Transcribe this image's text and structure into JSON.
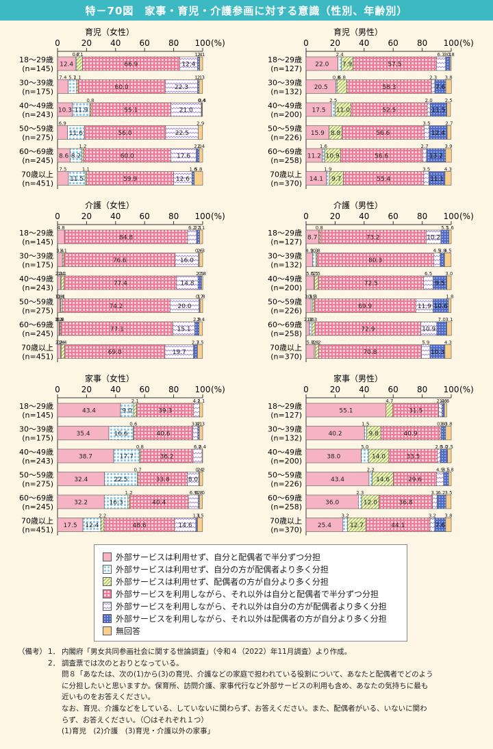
{
  "title": "特－70図　家事・育児・介護参画に対する意識（性別、年齢別）",
  "axis": {
    "ticks": [
      "0",
      "20",
      "40",
      "60",
      "80",
      "100"
    ],
    "unit": "(%)"
  },
  "categories": [
    [
      "18～29歳",
      "(n=145)"
    ],
    [
      "30～39歳",
      "(n=175)"
    ],
    [
      "40～49歳",
      "(n=243)"
    ],
    [
      "50～59歳",
      "(n=275)"
    ],
    [
      "60～69歳",
      "(n=245)"
    ],
    [
      "70歳以上",
      "(n=451)"
    ]
  ],
  "categories_male": [
    [
      "18～29歳",
      "(n=127)"
    ],
    [
      "30～39歳",
      "(n=132)"
    ],
    [
      "40～49歳",
      "(n=200)"
    ],
    [
      "50～59歳",
      "(n=226)"
    ],
    [
      "60～69歳",
      "(n=258)"
    ],
    [
      "70歳以上",
      "(n=370)"
    ]
  ],
  "colors": [
    "#f5b3c4",
    "#9ed4ef",
    "#d4e48a",
    "#f28aa2",
    "#d2c3ef",
    "#4f6bc4",
    "#f9cf8d"
  ],
  "patterns": [
    "solid",
    "dots",
    "diag",
    "grid",
    "wave",
    "dotsdark",
    "solid"
  ],
  "legend": [
    "外部サービスは利用せず、自分と配偶者で半分ずつ分担",
    "外部サービスは利用せず、自分の方が配偶者より多く分担",
    "外部サービスは利用せず、配偶者の方が自分より多く分担",
    "外部サービスを利用しながら、それ以外は自分と配偶者で半分ずつ分担",
    "外部サービスを利用しながら、それ以外は自分の方が配偶者より多く分担",
    "外部サービスを利用しながら、それ以外は配偶者の方が自分より多く分担",
    "無回答"
  ],
  "chart_data": [
    {
      "type": "bar",
      "stacked": true,
      "orientation": "horizontal",
      "title": "育児（女性）",
      "xlim": [
        0,
        100
      ],
      "group": "female",
      "values": [
        [
          12.4,
          0.7,
          4.1,
          66.9,
          12.4,
          1.4,
          2.1
        ],
        [
          7.4,
          5.7,
          1.1,
          60.0,
          22.3,
          1.1,
          2.3
        ],
        [
          10.3,
          11.9,
          0.8,
          55.1,
          21.0,
          0.4,
          0.4
        ],
        [
          6.9,
          11.6,
          0,
          56.0,
          22.5,
          0,
          2.9
        ],
        [
          8.6,
          8.2,
          1.2,
          60.0,
          17.6,
          2.0,
          2.4
        ],
        [
          7.5,
          11.5,
          1.1,
          59.9,
          12.6,
          1.6,
          5.8
        ]
      ]
    },
    {
      "type": "bar",
      "stacked": true,
      "orientation": "horizontal",
      "title": "育児（男性）",
      "xlim": [
        0,
        100
      ],
      "group": "male",
      "values": [
        [
          22.0,
          2.4,
          7.9,
          57.5,
          6.3,
          3.1,
          0.8
        ],
        [
          20.5,
          0.8,
          6.8,
          58.3,
          2.3,
          7.6,
          3.8
        ],
        [
          17.5,
          2.5,
          11.0,
          52.5,
          2.0,
          11.5,
          2.5
        ],
        [
          15.9,
          0,
          8.8,
          56.6,
          3.5,
          12.4,
          2.7
        ],
        [
          11.2,
          1.6,
          10.9,
          56.6,
          2.7,
          13.2,
          3.9
        ],
        [
          14.1,
          1.9,
          9.7,
          55.4,
          3.5,
          11.1,
          4.3
        ]
      ]
    },
    {
      "type": "bar",
      "stacked": true,
      "orientation": "horizontal",
      "title": "介護（女性）",
      "xlim": [
        0,
        100
      ],
      "group": "female",
      "values": [
        [
          4.8,
          0,
          0,
          84.8,
          6.2,
          2.1,
          2.1
        ],
        [
          3.4,
          0,
          1.1,
          76.6,
          16.0,
          0.6,
          2.3
        ],
        [
          2.1,
          0.4,
          2.1,
          77.4,
          14.8,
          2.5,
          0.8
        ],
        [
          1.8,
          0.4,
          1.1,
          74.2,
          20.0,
          0.7,
          1.8
        ],
        [
          1.2,
          0.4,
          0.8,
          77.1,
          15.1,
          2.9,
          2.4
        ],
        [
          2.2,
          0.4,
          2.4,
          69.0,
          19.7,
          2.7,
          3.5
        ]
      ]
    },
    {
      "type": "bar",
      "stacked": true,
      "orientation": "horizontal",
      "title": "介護（男性）",
      "xlim": [
        0,
        100
      ],
      "group": "male",
      "values": [
        [
          8.7,
          0,
          0.8,
          73.2,
          10.2,
          5.5,
          1.6
        ],
        [
          4.5,
          2.3,
          0.8,
          80.3,
          4.5,
          3.0,
          4.5
        ],
        [
          5.5,
          0.5,
          2.5,
          72.5,
          6.5,
          9.5,
          3.0
        ],
        [
          3.5,
          0.9,
          1.3,
          69.9,
          11.9,
          10.6,
          1.8
        ],
        [
          2.3,
          1.6,
          2.3,
          72.9,
          10.9,
          7.0,
          3.1
        ],
        [
          5.7,
          0.8,
          2.2,
          70.8,
          5.9,
          10.3,
          4.3
        ]
      ]
    },
    {
      "type": "bar",
      "stacked": true,
      "orientation": "horizontal",
      "title": "家事（女性）",
      "xlim": [
        0,
        100
      ],
      "group": "female",
      "values": [
        [
          43.4,
          9.0,
          2.1,
          39.3,
          4.1,
          0,
          2.1
        ],
        [
          35.4,
          16.6,
          0.6,
          40.6,
          3.4,
          1.1,
          2.3
        ],
        [
          38.7,
          17.7,
          0.8,
          36.2,
          6.2,
          0,
          0.4
        ],
        [
          32.4,
          22.5,
          0.7,
          33.8,
          8.0,
          0.4,
          2.2
        ],
        [
          32.2,
          16.3,
          1.2,
          40.4,
          6.9,
          0.8,
          2.0
        ],
        [
          17.5,
          12.4,
          2.2,
          48.6,
          14.6,
          1.1,
          3.5
        ]
      ]
    },
    {
      "type": "bar",
      "stacked": true,
      "orientation": "horizontal",
      "title": "家事（男性）",
      "xlim": [
        0,
        100
      ],
      "group": "male",
      "values": [
        [
          55.1,
          0,
          4.7,
          31.5,
          2.4,
          1.6,
          1.6
        ],
        [
          40.2,
          1.5,
          9.8,
          40.9,
          0.8,
          3.0,
          3.8
        ],
        [
          38.0,
          5.0,
          14.0,
          33.5,
          2.0,
          5.0,
          2.5
        ],
        [
          43.4,
          2.2,
          14.6,
          29.6,
          4.9,
          3.5,
          1.8
        ],
        [
          36.0,
          2.3,
          12.0,
          36.8,
          3.1,
          6.2,
          3.5
        ],
        [
          25.4,
          3.2,
          12.7,
          44.1,
          3.2,
          7.6,
          3.8
        ]
      ]
    }
  ],
  "notes": {
    "label": "（備考）",
    "n1": "1．",
    "l1": "内閣府「男女共同参画社会に関する世論調査」（令和４（2022）年11月調査）より作成。",
    "n2": "2．",
    "l2": "調査票では次のとおりとなっている。",
    "q1": "問８「あなたは、次の(1)から(3)の育児、介護などの家庭で担われている役割について、あなたと配偶者でどのよう",
    "q2": "に分担したいと思いますか。保育所、訪問介護、家事代行など外部サービスの利用も含め、あなたの気持ちに最も",
    "q3": "近いものをお答えください。",
    "q4": "なお、育児、介護などをしている、していないに関わらず、お答えください。また、配偶者がいる、いないに関わ",
    "q5": "らず、お答えください。（〇はそれぞれ１つ）",
    "q6": "(1)育児　(2)介護　(3)育児・介護以外の家事」"
  }
}
